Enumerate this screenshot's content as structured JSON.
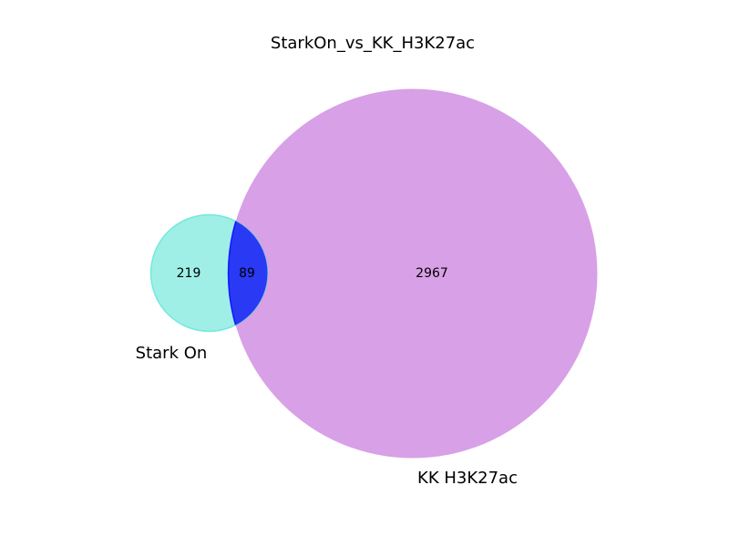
{
  "title": "StarkOn_vs_KK_H3K27ac",
  "sets": [
    {
      "id": "A",
      "label": "Stark On",
      "color": "#40E0D0",
      "opacity": 0.5
    },
    {
      "id": "B",
      "label": "KK H3K27ac",
      "color": "#BA55D3",
      "opacity": 0.56
    }
  ],
  "overlap_color": "#0000FF",
  "regions": {
    "only_a": "219",
    "a_and_b": "89",
    "only_b": "2967"
  }
}
